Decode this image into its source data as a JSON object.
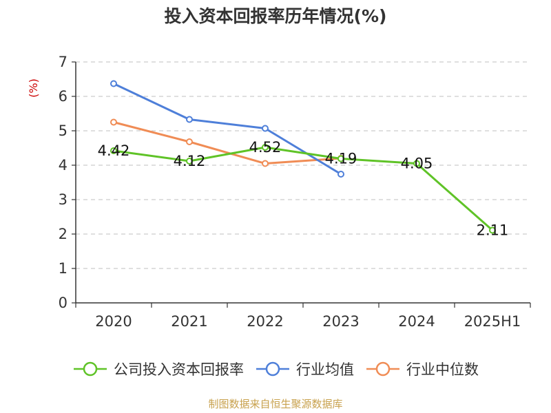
{
  "title": "投入资本回报率历年情况(%)",
  "source": "制图数据来自恒生聚源数据库",
  "colors": {
    "company": "#5fc327",
    "industry_avg": "#4e7fd9",
    "industry_median": "#f08c55",
    "ylabel": "#cc0000",
    "axis": "#333333",
    "grid": "#cccccc"
  },
  "chart_data": {
    "type": "line",
    "title": "投入资本回报率历年情况(%)",
    "ylabel": "(%)",
    "xlabel": "",
    "categories": [
      "2020",
      "2021",
      "2022",
      "2023",
      "2024",
      "2025H1"
    ],
    "ylim": [
      0,
      7
    ],
    "yticks": [
      "0",
      "1",
      "2",
      "3",
      "4",
      "5",
      "6",
      "7"
    ],
    "grid": true,
    "legend_position": "bottom",
    "series": [
      {
        "key": "company",
        "name": "公司投入资本回报率",
        "values": [
          4.42,
          4.12,
          4.52,
          4.19,
          4.05,
          2.11
        ],
        "labels": [
          "4.42",
          "4.12",
          "4.52",
          "4.19",
          "4.05",
          "2.11"
        ]
      },
      {
        "key": "industry_avg",
        "name": "行业均值",
        "values": [
          6.37,
          5.33,
          5.07,
          3.74,
          null,
          null
        ]
      },
      {
        "key": "industry_median",
        "name": "行业中位数",
        "values": [
          5.25,
          4.68,
          4.05,
          4.2,
          null,
          null
        ]
      }
    ]
  }
}
